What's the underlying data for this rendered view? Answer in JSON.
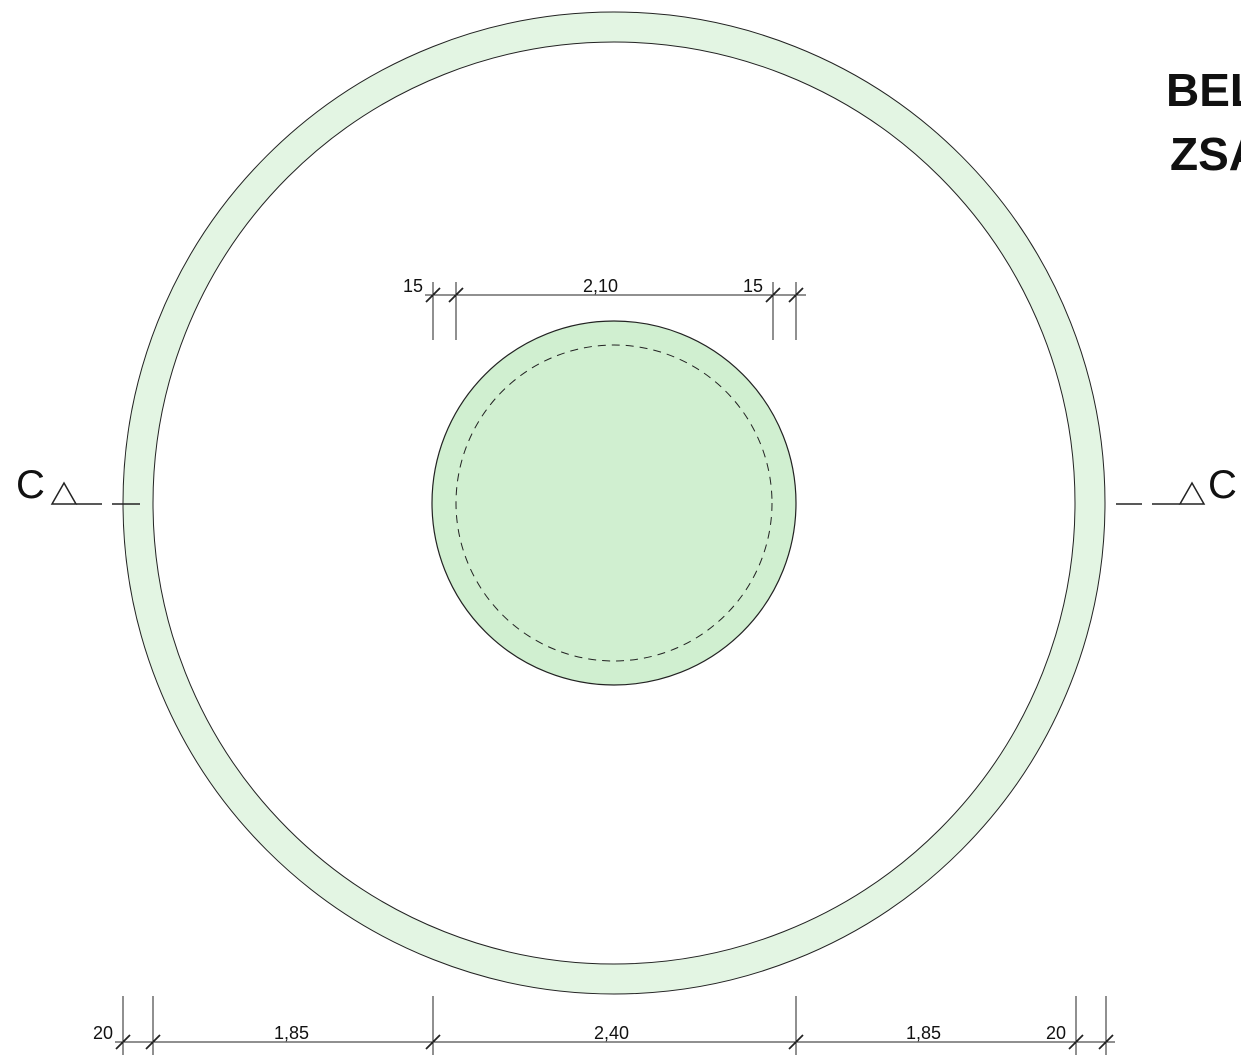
{
  "title": {
    "line1": "BEL",
    "line2": "ZSA"
  },
  "section_marker": {
    "left_label": "C",
    "right_label": "C"
  },
  "dimensions": {
    "top_left_wall": "15",
    "top_core": "2,10",
    "top_right_wall": "15",
    "bottom_left_wall": "20",
    "bottom_left_span": "1,85",
    "bottom_center_span": "2,40",
    "bottom_right_span": "1,85",
    "bottom_right_wall": "20"
  },
  "colors": {
    "ring_fill": "#e3f5e3",
    "core_fill": "#d0efd0",
    "stroke": "#222222"
  }
}
